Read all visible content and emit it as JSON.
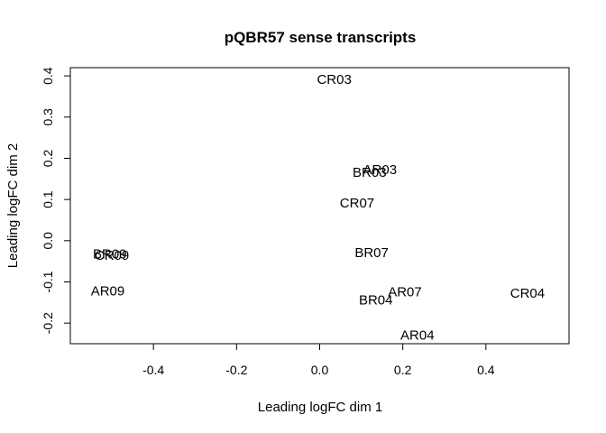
{
  "chart_data": {
    "type": "scatter",
    "title": "pQBR57 sense transcripts",
    "xlabel": "Leading logFC dim 1",
    "ylabel": "Leading logFC dim 2",
    "xlim": [
      -0.6,
      0.6
    ],
    "ylim": [
      -0.25,
      0.42
    ],
    "xticks": [
      -0.4,
      -0.2,
      0.0,
      0.2,
      0.4
    ],
    "yticks": [
      -0.2,
      -0.1,
      0.0,
      0.1,
      0.2,
      0.3,
      0.4
    ],
    "xtick_labels": [
      "-0.4",
      "-0.2",
      "0.0",
      "0.2",
      "0.4"
    ],
    "ytick_labels": [
      "-0.2",
      "-0.1",
      "0.0",
      "0.1",
      "0.2",
      "0.3",
      "0.4"
    ],
    "grid": false,
    "points": [
      {
        "label": "CR03",
        "x": 0.035,
        "y": 0.39
      },
      {
        "label": "AR03",
        "x": 0.145,
        "y": 0.172
      },
      {
        "label": "BR03",
        "x": 0.12,
        "y": 0.165
      },
      {
        "label": "CR07",
        "x": 0.09,
        "y": 0.09
      },
      {
        "label": "BR07",
        "x": 0.125,
        "y": -0.03
      },
      {
        "label": "BR09",
        "x": -0.505,
        "y": -0.033
      },
      {
        "label": "CR09",
        "x": -0.5,
        "y": -0.037
      },
      {
        "label": "AR09",
        "x": -0.51,
        "y": -0.123
      },
      {
        "label": "AR07",
        "x": 0.205,
        "y": -0.125
      },
      {
        "label": "BR04",
        "x": 0.135,
        "y": -0.145
      },
      {
        "label": "CR04",
        "x": 0.5,
        "y": -0.128
      },
      {
        "label": "AR04",
        "x": 0.235,
        "y": -0.23
      }
    ]
  }
}
